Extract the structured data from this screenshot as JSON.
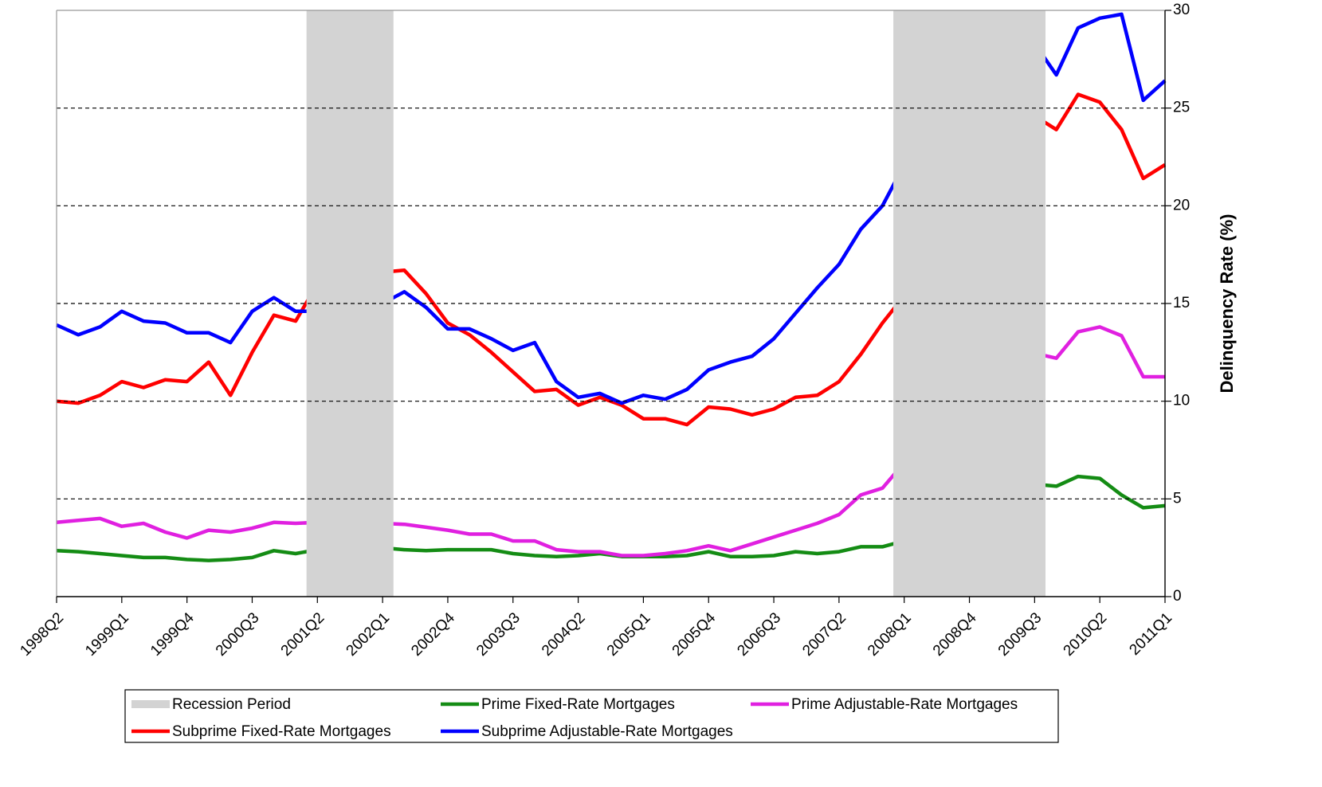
{
  "chart_data": {
    "type": "line",
    "y_label": "Delinquency Rate (%)",
    "categories": [
      "1998Q2",
      null,
      null,
      "1999Q1",
      null,
      null,
      "1999Q4",
      null,
      null,
      "2000Q3",
      null,
      null,
      "2001Q2",
      null,
      null,
      "2002Q1",
      null,
      null,
      "2002Q4",
      null,
      null,
      "2003Q3",
      null,
      null,
      "2004Q2",
      null,
      null,
      "2005Q1",
      null,
      null,
      "2005Q4",
      null,
      null,
      "2006Q3",
      null,
      null,
      "2007Q2",
      null,
      null,
      "2008Q1",
      null,
      null,
      "2008Q4",
      null,
      null,
      "2009Q3",
      null,
      null,
      "2010Q2",
      null,
      null,
      "2011Q1"
    ],
    "ylim": [
      0,
      30
    ],
    "yticks": [
      0,
      5,
      10,
      15,
      20,
      25,
      30
    ],
    "grid": true,
    "y_axis_side": "right",
    "legend": "bottom",
    "recession": {
      "name": "Recession Period",
      "color": "#d3d3d3",
      "periods": [
        [
          "2001Q2",
          "2002Q1"
        ],
        [
          "2008Q1",
          "2009Q3"
        ]
      ]
    },
    "series": [
      {
        "name": "Prime Fixed-Rate Mortgages",
        "color": "#148c14",
        "values": [
          2.35,
          2.3,
          2.2,
          2.1,
          2.0,
          2.0,
          1.9,
          1.85,
          1.9,
          2.0,
          2.35,
          2.2,
          2.4,
          2.55,
          2.5,
          2.5,
          2.4,
          2.35,
          2.4,
          2.4,
          2.4,
          2.2,
          2.1,
          2.05,
          2.1,
          2.2,
          2.05,
          2.05,
          2.05,
          2.1,
          2.3,
          2.05,
          2.05,
          2.1,
          2.3,
          2.2,
          2.3,
          2.55,
          2.55,
          2.85,
          3.1,
          3.4,
          3.95,
          4.7,
          5.25,
          5.75,
          5.65,
          6.15,
          6.05,
          5.2,
          4.55,
          4.65
        ]
      },
      {
        "name": "Prime Adjustable-Rate Mortgages",
        "color": "#e020e0",
        "values": [
          3.8,
          3.9,
          4.0,
          3.6,
          3.75,
          3.3,
          3.0,
          3.4,
          3.3,
          3.5,
          3.8,
          3.75,
          3.8,
          4.2,
          3.9,
          3.75,
          3.7,
          3.55,
          3.4,
          3.2,
          3.2,
          2.85,
          2.85,
          2.4,
          2.3,
          2.3,
          2.1,
          2.1,
          2.2,
          2.35,
          2.6,
          2.35,
          2.7,
          3.05,
          3.4,
          3.75,
          4.2,
          5.2,
          5.55,
          6.85,
          7.45,
          8.3,
          9.75,
          12.05,
          12.2,
          12.45,
          12.2,
          13.55,
          13.8,
          13.35,
          11.25,
          11.25
        ]
      },
      {
        "name": "Subprime Fixed-Rate Mortgages",
        "color": "#ff0000",
        "values": [
          10.0,
          9.9,
          10.3,
          11.0,
          10.7,
          11.1,
          11.0,
          12.0,
          10.3,
          12.5,
          14.4,
          14.1,
          16.0,
          16.1,
          16.0,
          16.6,
          16.7,
          15.5,
          14.0,
          13.4,
          12.5,
          11.5,
          10.5,
          10.6,
          9.8,
          10.2,
          9.8,
          9.1,
          9.1,
          8.8,
          9.7,
          9.6,
          9.3,
          9.6,
          10.2,
          10.3,
          11.0,
          12.4,
          14.0,
          15.4,
          16.1,
          18.0,
          19.4,
          22.8,
          23.6,
          24.6,
          23.9,
          25.7,
          25.3,
          23.9,
          21.4,
          22.1
        ]
      },
      {
        "name": "Subprime Adjustable-Rate Mortgages",
        "color": "#0000ff",
        "values": [
          13.9,
          13.4,
          13.8,
          14.6,
          14.1,
          14.0,
          13.5,
          13.5,
          13.0,
          14.6,
          15.3,
          14.6,
          14.6,
          14.55,
          14.4,
          15.0,
          15.6,
          14.8,
          13.7,
          13.7,
          13.2,
          12.6,
          13.0,
          11.0,
          10.2,
          10.4,
          9.9,
          10.3,
          10.1,
          10.6,
          11.6,
          12.0,
          12.3,
          13.2,
          14.5,
          15.8,
          17.0,
          18.8,
          20.0,
          22.1,
          21.0,
          21.4,
          24.2,
          27.6,
          27.4,
          28.3,
          26.7,
          29.1,
          29.6,
          29.8,
          25.4,
          26.4
        ]
      }
    ]
  }
}
